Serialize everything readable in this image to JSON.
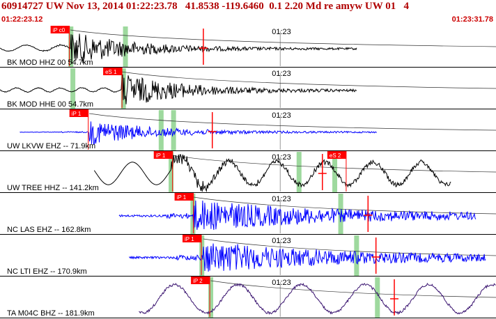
{
  "header": {
    "title": "60914727 UW Nov 13, 2014 01:22:23.78   41.8538 -119.6460  0.1 2.20 Md re amyw UW 01   4",
    "time_start": "01:22:23.12",
    "time_end": "01:23:31.78"
  },
  "tick_label": "01:23",
  "colors": {
    "title": "#b00000",
    "pick_fill": "#ff0000",
    "green_band": "#9ed99e",
    "grid": "#999999",
    "black_trace": "#000000",
    "blue_trace": "#0000ff",
    "purple_trace": "#3a1470"
  },
  "channels": [
    {
      "label": "BK MOD HHZ 00 54.7km",
      "color": "black",
      "amp": 0.4,
      "style": "bk_z",
      "start": 0.0,
      "end": 0.72,
      "onset": 0.142,
      "picks": [
        {
          "text": "iP c0",
          "pos": 0.102
        }
      ],
      "bands": [
        0.138,
        0.248
      ],
      "markers": [
        0.41
      ]
    },
    {
      "label": "BK MOD HHE 00 54.7km",
      "color": "black",
      "amp": 0.4,
      "style": "bk_e",
      "start": 0.0,
      "end": 0.72,
      "onset": 0.245,
      "picks": [
        {
          "text": "eS 1",
          "pos": 0.208
        }
      ],
      "bands": [
        0.142,
        0.244
      ],
      "markers": []
    },
    {
      "label": "UW LKVW EHZ -- 71.9km",
      "color": "blue",
      "amp": 0.3,
      "style": "local",
      "start": 0.04,
      "end": 0.76,
      "onset": 0.18,
      "picks": [
        {
          "text": "iP 1",
          "pos": 0.14
        }
      ],
      "bands": [
        0.32,
        0.345
      ],
      "markers": [
        0.428
      ]
    },
    {
      "label": "UW TREE HHZ -- 141.2km",
      "color": "black",
      "amp": 0.45,
      "style": "tree",
      "start": 0.19,
      "end": 0.91,
      "onset": 0.345,
      "picks": [
        {
          "text": "iP 1",
          "pos": 0.31
        },
        {
          "text": "eS 2",
          "pos": 0.66
        }
      ],
      "bands": [
        0.34,
        0.598,
        0.67
      ],
      "markers": [
        0.65
      ]
    },
    {
      "label": "NC LAS EHZ -- 162.8km",
      "color": "blue",
      "amp": 0.35,
      "style": "noisy",
      "start": 0.24,
      "end": 0.96,
      "onset": 0.39,
      "picks": [
        {
          "text": "iP 1",
          "pos": 0.352
        }
      ],
      "bands": [
        0.384,
        0.682
      ],
      "markers": [
        0.742
      ]
    },
    {
      "label": "NC LTI EHZ -- 170.9km",
      "color": "blue",
      "amp": 0.35,
      "style": "noisy",
      "start": 0.26,
      "end": 0.98,
      "onset": 0.41,
      "picks": [
        {
          "text": "iP 1",
          "pos": 0.368
        }
      ],
      "bands": [
        0.402,
        0.714
      ],
      "markers": [
        0.758
      ]
    },
    {
      "label": "TA M04C BHZ -- 181.9km",
      "color": "purple",
      "amp": 0.4,
      "style": "sine",
      "start": 0.28,
      "end": 1.0,
      "onset": 0.425,
      "picks": [
        {
          "text": "iP 2",
          "pos": 0.385
        }
      ],
      "bands": [
        0.42,
        0.756
      ],
      "markers": [
        0.795
      ]
    }
  ]
}
